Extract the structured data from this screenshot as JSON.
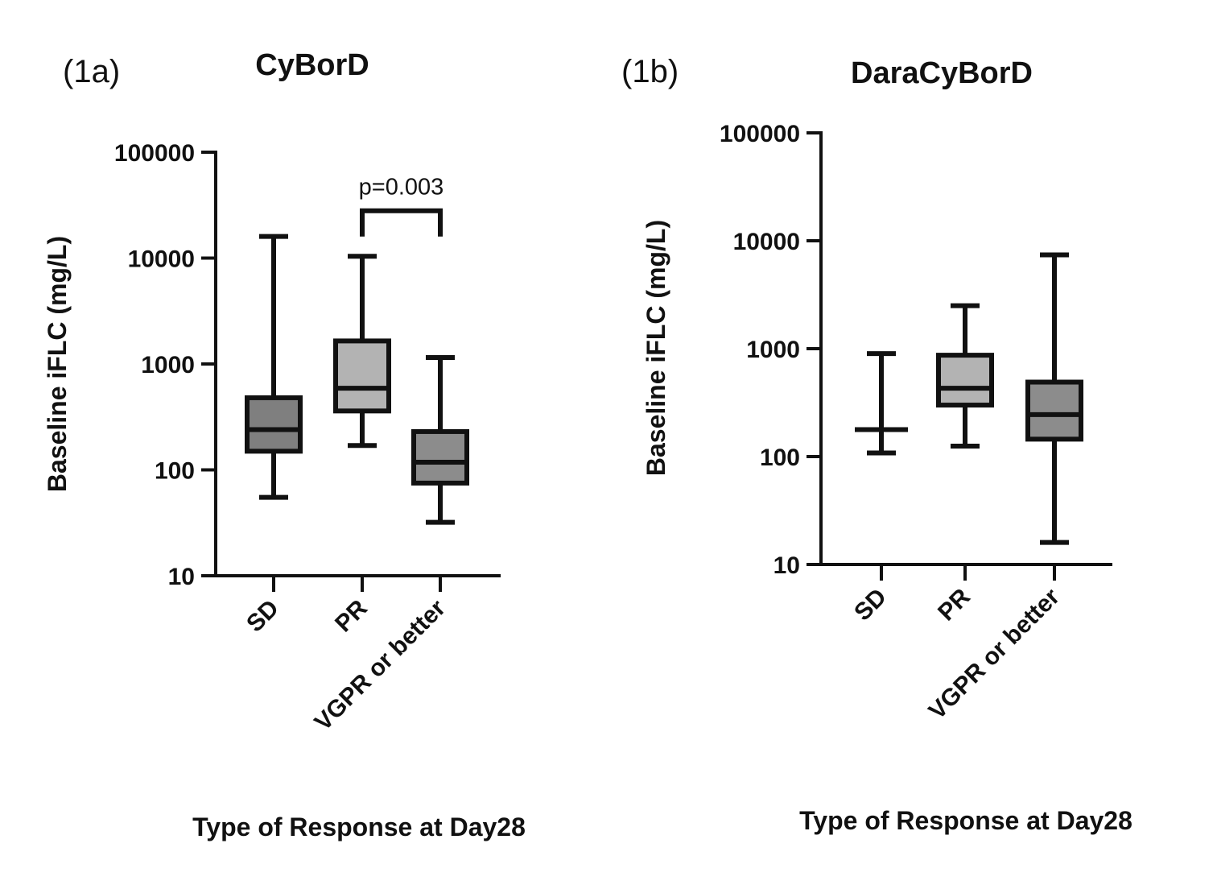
{
  "chart_data": [
    {
      "type": "box",
      "panel_label": "(1a)",
      "title": "CyBorD",
      "ylabel": "Baseline iFLC (mg/L)",
      "xlabel": "Type of Response at Day28",
      "y_scale": "log",
      "ylim": [
        10,
        100000
      ],
      "y_ticks": [
        10,
        100,
        1000,
        10000,
        100000
      ],
      "y_tick_labels": [
        "10",
        "100",
        "1000",
        "10000",
        "100000"
      ],
      "categories": [
        "SD",
        "PR",
        "VGPR or better"
      ],
      "boxes": [
        {
          "category": "SD",
          "min": 55,
          "q1": 150,
          "median": 240,
          "q3": 480,
          "max": 16000,
          "fill": "#7f7f7f"
        },
        {
          "category": "PR",
          "min": 170,
          "q1": 360,
          "median": 590,
          "q3": 1650,
          "max": 10400,
          "fill": "#b3b3b3"
        },
        {
          "category": "VGPR or better",
          "min": 32,
          "q1": 75,
          "median": 118,
          "q3": 230,
          "max": 1150,
          "fill": "#8c8c8c"
        }
      ],
      "annotations": [
        {
          "text": "p=0.003",
          "between": [
            "PR",
            "VGPR or better"
          ],
          "bracket_level": 28000
        }
      ]
    },
    {
      "type": "box",
      "panel_label": "(1b)",
      "title": "DaraCyBorD",
      "ylabel": "Baseline iFLC (mg/L)",
      "xlabel": "Type of Response at Day28",
      "y_scale": "log",
      "ylim": [
        10,
        100000
      ],
      "y_ticks": [
        10,
        100,
        1000,
        10000,
        100000
      ],
      "y_tick_labels": [
        "10",
        "100",
        "1000",
        "10000",
        "100000"
      ],
      "categories": [
        "SD",
        "PR",
        "VGPR or better"
      ],
      "boxes": [
        {
          "category": "SD",
          "min": 108,
          "q1": 178,
          "median": 178,
          "q3": 178,
          "max": 900,
          "fill": "#7f7f7f"
        },
        {
          "category": "PR",
          "min": 125,
          "q1": 300,
          "median": 430,
          "q3": 870,
          "max": 2500,
          "fill": "#b3b3b3"
        },
        {
          "category": "VGPR or better",
          "min": 16,
          "q1": 145,
          "median": 245,
          "q3": 490,
          "max": 7400,
          "fill": "#8c8c8c"
        }
      ],
      "annotations": []
    }
  ]
}
